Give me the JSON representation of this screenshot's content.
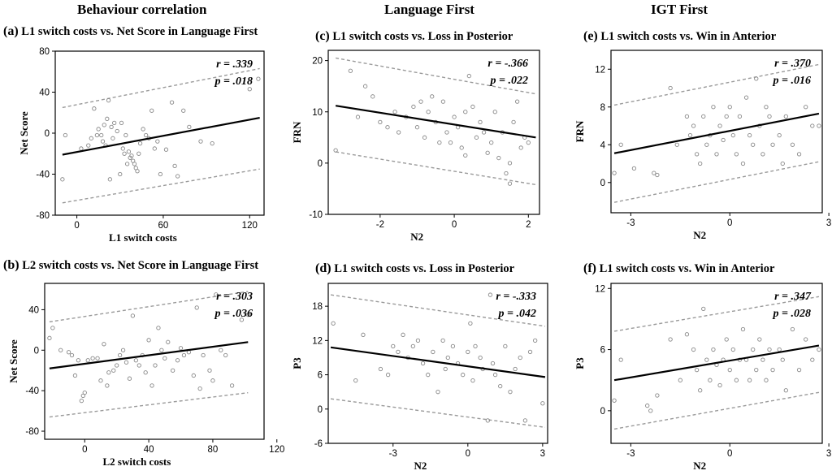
{
  "headings": [
    "Behaviour correlation",
    "Language First",
    "IGT First"
  ],
  "chart_data": [
    {
      "id": "a",
      "type": "scatter",
      "letter": "(a)",
      "title": "L1 switch costs vs. Net Score in Language First",
      "xlabel": "L1 switch costs",
      "ylabel": "Net Score",
      "xlim": [
        -15,
        130
      ],
      "ylim": [
        -80,
        80
      ],
      "xticks": [
        0,
        60,
        120
      ],
      "yticks": [
        -80,
        -40,
        0,
        40,
        80
      ],
      "r_label": "r = .339",
      "p_label": "p = .018",
      "fit": {
        "x": [
          -10,
          127
        ],
        "y": [
          -21,
          15
        ]
      },
      "ci_upper": {
        "x": [
          -10,
          127
        ],
        "y": [
          25,
          63
        ]
      },
      "ci_lower": {
        "x": [
          -10,
          127
        ],
        "y": [
          -68,
          -35
        ]
      },
      "points": [
        [
          -10,
          -45
        ],
        [
          -8,
          -2
        ],
        [
          3,
          -15
        ],
        [
          8,
          -12
        ],
        [
          10,
          -5
        ],
        [
          12,
          24
        ],
        [
          14,
          -2
        ],
        [
          15,
          4
        ],
        [
          17,
          -2
        ],
        [
          18,
          -8
        ],
        [
          19,
          8
        ],
        [
          20,
          -12
        ],
        [
          21,
          14
        ],
        [
          22,
          32
        ],
        [
          23,
          -45
        ],
        [
          24,
          6
        ],
        [
          25,
          -5
        ],
        [
          26,
          10
        ],
        [
          28,
          2
        ],
        [
          30,
          -40
        ],
        [
          31,
          10
        ],
        [
          32,
          -15
        ],
        [
          33,
          -20
        ],
        [
          34,
          -2
        ],
        [
          35,
          -30
        ],
        [
          36,
          -18
        ],
        [
          37,
          -24
        ],
        [
          38,
          -22
        ],
        [
          39,
          -27
        ],
        [
          40,
          -30
        ],
        [
          41,
          -34
        ],
        [
          42,
          -37
        ],
        [
          43,
          -20
        ],
        [
          44,
          -10
        ],
        [
          46,
          4
        ],
        [
          48,
          -2
        ],
        [
          50,
          -5
        ],
        [
          52,
          22
        ],
        [
          54,
          -15
        ],
        [
          56,
          -8
        ],
        [
          58,
          -40
        ],
        [
          62,
          -16
        ],
        [
          66,
          30
        ],
        [
          68,
          -32
        ],
        [
          70,
          -42
        ],
        [
          74,
          22
        ],
        [
          78,
          6
        ],
        [
          86,
          -8
        ],
        [
          94,
          -10
        ],
        [
          120,
          43
        ],
        [
          126,
          53
        ]
      ]
    },
    {
      "id": "b",
      "type": "scatter",
      "letter": "(b)",
      "title": "L2 switch costs vs. Net Score in Language First",
      "xlabel": "L2 switch costs",
      "ylabel": "Net Score",
      "xlim": [
        -25,
        112
      ],
      "ylim": [
        -88,
        66
      ],
      "xticks": [
        0,
        40,
        80,
        120
      ],
      "yticks": [
        -80,
        -40,
        0,
        40
      ],
      "r_label": "r = .303",
      "p_label": "p = .036",
      "fit": {
        "x": [
          -22,
          102
        ],
        "y": [
          -18,
          8
        ]
      },
      "ci_upper": {
        "x": [
          -22,
          102
        ],
        "y": [
          28,
          58
        ]
      },
      "ci_lower": {
        "x": [
          -22,
          102
        ],
        "y": [
          -66,
          -42
        ]
      },
      "points": [
        [
          -22,
          12
        ],
        [
          -20,
          22
        ],
        [
          -15,
          0
        ],
        [
          -10,
          -2
        ],
        [
          -8,
          -5
        ],
        [
          -6,
          -25
        ],
        [
          -4,
          -10
        ],
        [
          -2,
          -50
        ],
        [
          -1,
          -45
        ],
        [
          0,
          -42
        ],
        [
          2,
          -10
        ],
        [
          5,
          -8
        ],
        [
          8,
          -8
        ],
        [
          10,
          -30
        ],
        [
          12,
          6
        ],
        [
          14,
          -35
        ],
        [
          15,
          -22
        ],
        [
          18,
          -20
        ],
        [
          20,
          -15
        ],
        [
          22,
          -5
        ],
        [
          24,
          0
        ],
        [
          26,
          -12
        ],
        [
          28,
          -28
        ],
        [
          30,
          34
        ],
        [
          32,
          -10
        ],
        [
          34,
          -15
        ],
        [
          36,
          -5
        ],
        [
          38,
          -22
        ],
        [
          40,
          10
        ],
        [
          42,
          -35
        ],
        [
          44,
          -15
        ],
        [
          46,
          22
        ],
        [
          48,
          0
        ],
        [
          50,
          -8
        ],
        [
          52,
          8
        ],
        [
          55,
          -20
        ],
        [
          58,
          -10
        ],
        [
          60,
          2
        ],
        [
          62,
          -5
        ],
        [
          65,
          -2
        ],
        [
          68,
          -25
        ],
        [
          70,
          42
        ],
        [
          72,
          -38
        ],
        [
          74,
          -5
        ],
        [
          78,
          -20
        ],
        [
          80,
          -30
        ],
        [
          82,
          55
        ],
        [
          85,
          0
        ],
        [
          88,
          -5
        ],
        [
          92,
          -35
        ],
        [
          98,
          30
        ],
        [
          102,
          35
        ]
      ]
    },
    {
      "id": "c",
      "type": "scatter",
      "letter": "(c)",
      "title": "L1 switch costs vs. Loss in Posterior",
      "xlabel": "N2",
      "ylabel": "FRN",
      "xlim": [
        -3.4,
        2.3
      ],
      "ylim": [
        -10,
        22
      ],
      "xticks": [
        -2,
        0,
        2
      ],
      "yticks": [
        -10,
        0,
        10,
        20
      ],
      "r_label": "r = -.366",
      "p_label": "p = .022",
      "fit": {
        "x": [
          -3.2,
          2.2
        ],
        "y": [
          11.2,
          5
        ]
      },
      "ci_upper": {
        "x": [
          -3.2,
          2.2
        ],
        "y": [
          20.5,
          13.5
        ]
      },
      "ci_lower": {
        "x": [
          -3.2,
          2.2
        ],
        "y": [
          2.2,
          -4.2
        ]
      },
      "points": [
        [
          -3.2,
          2.5
        ],
        [
          -2.8,
          18
        ],
        [
          -2.6,
          9
        ],
        [
          -2.4,
          15
        ],
        [
          -2.2,
          13
        ],
        [
          -2,
          8
        ],
        [
          -1.8,
          7
        ],
        [
          -1.6,
          10
        ],
        [
          -1.5,
          6
        ],
        [
          -1.3,
          9
        ],
        [
          -1.1,
          11
        ],
        [
          -1,
          7
        ],
        [
          -0.9,
          12
        ],
        [
          -0.8,
          5
        ],
        [
          -0.7,
          10
        ],
        [
          -0.6,
          13
        ],
        [
          -0.5,
          8
        ],
        [
          -0.4,
          4
        ],
        [
          -0.3,
          12
        ],
        [
          -0.2,
          6
        ],
        [
          -0.1,
          4
        ],
        [
          0,
          9
        ],
        [
          0.1,
          7
        ],
        [
          0.2,
          3
        ],
        [
          0.3,
          10
        ],
        [
          0.4,
          17
        ],
        [
          0.5,
          11
        ],
        [
          0.6,
          5
        ],
        [
          0.7,
          8
        ],
        [
          0.8,
          6
        ],
        [
          0.9,
          2
        ],
        [
          1,
          4
        ],
        [
          1.1,
          10
        ],
        [
          1.2,
          1
        ],
        [
          1.3,
          6
        ],
        [
          1.4,
          -2
        ],
        [
          1.5,
          -4
        ],
        [
          1.6,
          8
        ],
        [
          1.7,
          12
        ],
        [
          1.8,
          3
        ],
        [
          1.9,
          5
        ],
        [
          2,
          4
        ],
        [
          1.5,
          0
        ],
        [
          0.3,
          1.5
        ]
      ]
    },
    {
      "id": "d",
      "type": "scatter",
      "letter": "(d)",
      "title": "L1 switch costs vs. Loss in Posterior",
      "xlabel": "N2",
      "ylabel": "P3",
      "xlim": [
        -5.6,
        3.2
      ],
      "ylim": [
        -6,
        22
      ],
      "xticks": [
        -3,
        0,
        3
      ],
      "yticks": [
        -6,
        0,
        6,
        12,
        18
      ],
      "r_label": "r = -.333",
      "p_label": "p = .042",
      "fit": {
        "x": [
          -5.5,
          3.1
        ],
        "y": [
          10.8,
          5.6
        ]
      },
      "ci_upper": {
        "x": [
          -5.5,
          3.1
        ],
        "y": [
          20,
          14.5
        ]
      },
      "ci_lower": {
        "x": [
          -5.5,
          3.1
        ],
        "y": [
          1.8,
          -3.2
        ]
      },
      "points": [
        [
          -5.4,
          15
        ],
        [
          -4.5,
          5
        ],
        [
          -4.2,
          13
        ],
        [
          -3.5,
          7
        ],
        [
          -3.2,
          6
        ],
        [
          -3,
          11
        ],
        [
          -2.8,
          10
        ],
        [
          -2.6,
          13
        ],
        [
          -2.4,
          9
        ],
        [
          -2.2,
          11
        ],
        [
          -2,
          12
        ],
        [
          -1.8,
          8
        ],
        [
          -1.6,
          6
        ],
        [
          -1.4,
          10
        ],
        [
          -1.2,
          3
        ],
        [
          -1,
          12
        ],
        [
          -0.9,
          7
        ],
        [
          -0.8,
          9
        ],
        [
          -0.6,
          11
        ],
        [
          -0.4,
          8
        ],
        [
          -0.2,
          6
        ],
        [
          0,
          10
        ],
        [
          0.1,
          15
        ],
        [
          0.2,
          5
        ],
        [
          0.3,
          11
        ],
        [
          0.5,
          9
        ],
        [
          0.6,
          7
        ],
        [
          0.8,
          -2
        ],
        [
          0.9,
          20
        ],
        [
          1,
          8
        ],
        [
          1.1,
          6
        ],
        [
          1.3,
          4
        ],
        [
          1.5,
          11
        ],
        [
          1.7,
          3
        ],
        [
          1.9,
          7
        ],
        [
          2.1,
          9
        ],
        [
          2.3,
          -2
        ],
        [
          2.5,
          10
        ],
        [
          2.7,
          12
        ],
        [
          3,
          1
        ]
      ]
    },
    {
      "id": "e",
      "type": "scatter",
      "letter": "(e)",
      "title": "L1 switch costs vs. Win in Anterior",
      "xlabel": "N2",
      "ylabel": "FRN",
      "xlim": [
        -3.6,
        2.8
      ],
      "ylim": [
        -3.2,
        14
      ],
      "xticks": [
        -3,
        0,
        3
      ],
      "yticks": [
        0,
        4,
        8,
        12
      ],
      "r_label": "r = .370",
      "p_label": "p = .016",
      "fit": {
        "x": [
          -3.5,
          2.7
        ],
        "y": [
          3.1,
          7.3
        ]
      },
      "ci_upper": {
        "x": [
          -3.5,
          2.7
        ],
        "y": [
          8.2,
          12.5
        ]
      },
      "ci_lower": {
        "x": [
          -3.5,
          2.7
        ],
        "y": [
          -2.1,
          2.2
        ]
      },
      "points": [
        [
          -3.5,
          1
        ],
        [
          -3.3,
          4
        ],
        [
          -2.9,
          1.5
        ],
        [
          -2.3,
          1
        ],
        [
          -2.2,
          0.8
        ],
        [
          -1.8,
          10
        ],
        [
          -1.6,
          4
        ],
        [
          -1.3,
          7
        ],
        [
          -1.2,
          5
        ],
        [
          -1.1,
          6
        ],
        [
          -1,
          3
        ],
        [
          -0.9,
          2
        ],
        [
          -0.8,
          7
        ],
        [
          -0.7,
          4
        ],
        [
          -0.6,
          5
        ],
        [
          -0.5,
          8
        ],
        [
          -0.4,
          3
        ],
        [
          -0.3,
          6
        ],
        [
          -0.2,
          4.5
        ],
        [
          -0.1,
          7
        ],
        [
          0,
          8
        ],
        [
          0.1,
          5
        ],
        [
          0.2,
          3
        ],
        [
          0.3,
          7
        ],
        [
          0.4,
          2
        ],
        [
          0.5,
          9
        ],
        [
          0.6,
          5
        ],
        [
          0.7,
          4
        ],
        [
          0.8,
          11
        ],
        [
          0.9,
          6
        ],
        [
          1,
          3
        ],
        [
          1.1,
          8
        ],
        [
          1.2,
          7
        ],
        [
          1.3,
          4
        ],
        [
          1.5,
          5
        ],
        [
          1.6,
          2
        ],
        [
          1.7,
          7
        ],
        [
          1.9,
          4
        ],
        [
          2.1,
          3
        ],
        [
          2.3,
          8
        ],
        [
          2.5,
          6
        ],
        [
          2.7,
          6
        ]
      ]
    },
    {
      "id": "f",
      "type": "scatter",
      "letter": "(f)",
      "title": "L1 switch costs vs. Win in  Anterior",
      "xlabel": "N2",
      "ylabel": "P3",
      "xlim": [
        -3.6,
        2.8
      ],
      "ylim": [
        -3.2,
        12.5
      ],
      "xticks": [
        -3,
        0,
        3
      ],
      "yticks": [
        0,
        6,
        12
      ],
      "r_label": "r = .347",
      "p_label": "p = .028",
      "fit": {
        "x": [
          -3.5,
          2.7
        ],
        "y": [
          3,
          6.4
        ]
      },
      "ci_upper": {
        "x": [
          -3.5,
          2.7
        ],
        "y": [
          7.8,
          11.2
        ]
      },
      "ci_lower": {
        "x": [
          -3.5,
          2.7
        ],
        "y": [
          -1.8,
          1.8
        ]
      },
      "points": [
        [
          -3.5,
          1
        ],
        [
          -3.3,
          5
        ],
        [
          -2.5,
          0.5
        ],
        [
          -2.4,
          0
        ],
        [
          -2.2,
          1.5
        ],
        [
          -1.8,
          7
        ],
        [
          -1.5,
          3
        ],
        [
          -1.3,
          7.5
        ],
        [
          -1.1,
          6
        ],
        [
          -1,
          4
        ],
        [
          -0.9,
          2
        ],
        [
          -0.8,
          10
        ],
        [
          -0.7,
          5
        ],
        [
          -0.6,
          3
        ],
        [
          -0.5,
          6
        ],
        [
          -0.4,
          4.5
        ],
        [
          -0.3,
          2.5
        ],
        [
          -0.2,
          5
        ],
        [
          -0.1,
          7
        ],
        [
          0,
          4
        ],
        [
          0.1,
          6
        ],
        [
          0.2,
          3
        ],
        [
          0.3,
          5
        ],
        [
          0.4,
          8
        ],
        [
          0.5,
          5
        ],
        [
          0.6,
          3
        ],
        [
          0.7,
          6
        ],
        [
          0.8,
          4
        ],
        [
          0.9,
          7
        ],
        [
          1,
          5
        ],
        [
          1.1,
          3
        ],
        [
          1.2,
          6
        ],
        [
          1.3,
          4
        ],
        [
          1.5,
          6
        ],
        [
          1.6,
          5
        ],
        [
          1.7,
          2
        ],
        [
          1.9,
          8
        ],
        [
          2.1,
          4
        ],
        [
          2.3,
          7
        ],
        [
          2.5,
          5
        ],
        [
          2.7,
          6
        ]
      ]
    }
  ]
}
